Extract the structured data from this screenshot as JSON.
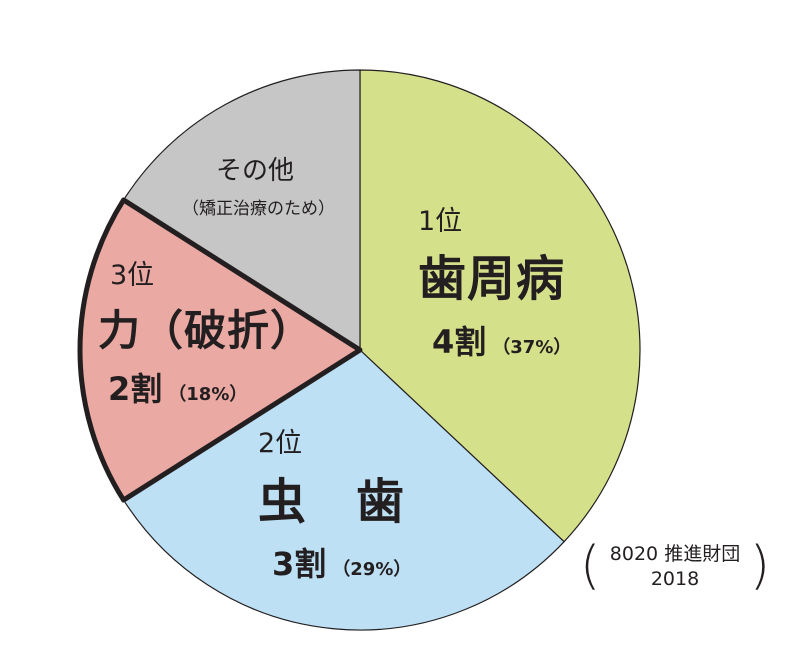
{
  "chart_data": {
    "type": "pie",
    "start_angle": "12 o'clock",
    "direction": "clockwise",
    "slices": [
      {
        "rank": "1位",
        "label": "歯周病",
        "ratio_text": "4割",
        "percent_text": "（37%）",
        "value": 37,
        "color": "#d5e08a"
      },
      {
        "rank": "2位",
        "label": "虫　歯",
        "ratio_text": "3割",
        "percent_text": "（29%）",
        "value": 29,
        "color": "#bde0f5"
      },
      {
        "rank": "3位",
        "label": "力（破折）",
        "ratio_text": "2割",
        "percent_text": "（18%）",
        "value": 18,
        "color": "#eaa9a3",
        "highlighted": true
      },
      {
        "rank": "",
        "label": "その他",
        "note": "（矯正治療のため）",
        "ratio_text": "",
        "percent_text": "",
        "value": 16,
        "color": "#c6c6c6"
      }
    ],
    "source": {
      "line1": "8020 推進財団",
      "line2": "2018"
    },
    "edge_color": "#231f20",
    "highlight_edge_color": "#231f20"
  }
}
